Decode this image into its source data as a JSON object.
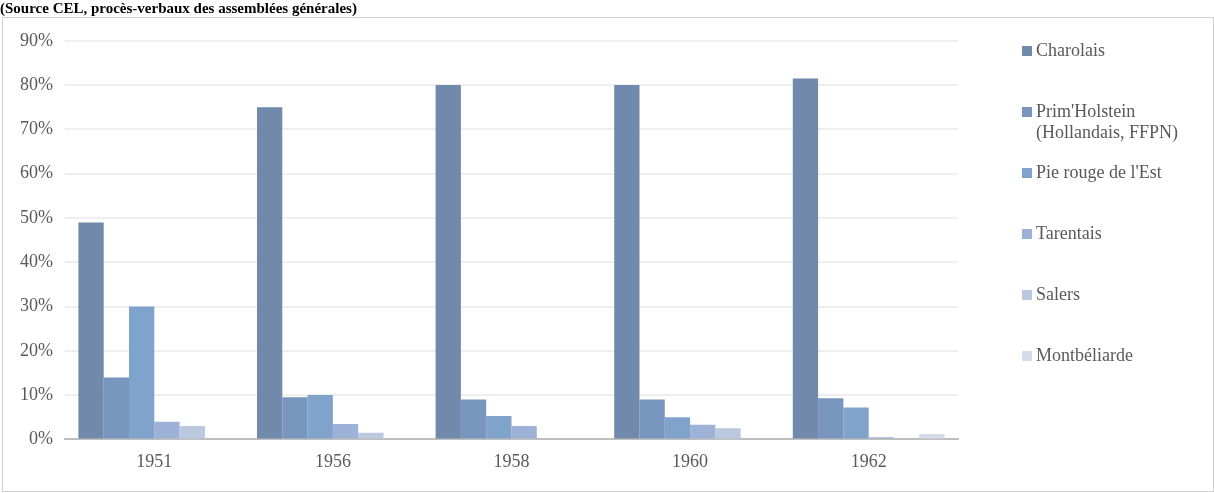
{
  "chart_data": {
    "type": "bar",
    "annotations": [
      "(Source CEL, procès-verbaux des assemblées générales)"
    ],
    "categories": [
      "1951",
      "1956",
      "1958",
      "1960",
      "1962"
    ],
    "series": [
      {
        "name": "Charolais",
        "color": "#7189ab",
        "values": [
          49,
          75,
          80,
          80,
          81.5
        ]
      },
      {
        "name": "Prim'Holstein (Hollandais, FFPN)",
        "color": "#7896bd",
        "values": [
          14,
          9.5,
          9,
          9,
          9.3
        ]
      },
      {
        "name": "Pie rouge de l'Est",
        "color": "#80a3cc",
        "values": [
          30,
          10,
          5.3,
          5,
          7.2
        ]
      },
      {
        "name": "Tarentais",
        "color": "#9db2d6",
        "values": [
          4,
          3.5,
          3,
          3.3,
          0.5
        ]
      },
      {
        "name": "Salers",
        "color": "#bac8e0",
        "values": [
          3,
          1.5,
          0,
          2.5,
          0
        ]
      },
      {
        "name": "Montbéliarde",
        "color": "#d3dbe9",
        "values": [
          0,
          0,
          0,
          0,
          1.2
        ]
      }
    ],
    "ylim": [
      0,
      90
    ],
    "yticks": [
      {
        "value": 0,
        "label": "0%"
      },
      {
        "value": 10,
        "label": "10%"
      },
      {
        "value": 20,
        "label": "20%"
      },
      {
        "value": 30,
        "label": "30%"
      },
      {
        "value": 40,
        "label": "40%"
      },
      {
        "value": 50,
        "label": "50%"
      },
      {
        "value": 60,
        "label": "60%"
      },
      {
        "value": 70,
        "label": "70%"
      },
      {
        "value": 80,
        "label": "80%"
      },
      {
        "value": 90,
        "label": "90%"
      }
    ],
    "grid": "y",
    "legend": "right"
  }
}
